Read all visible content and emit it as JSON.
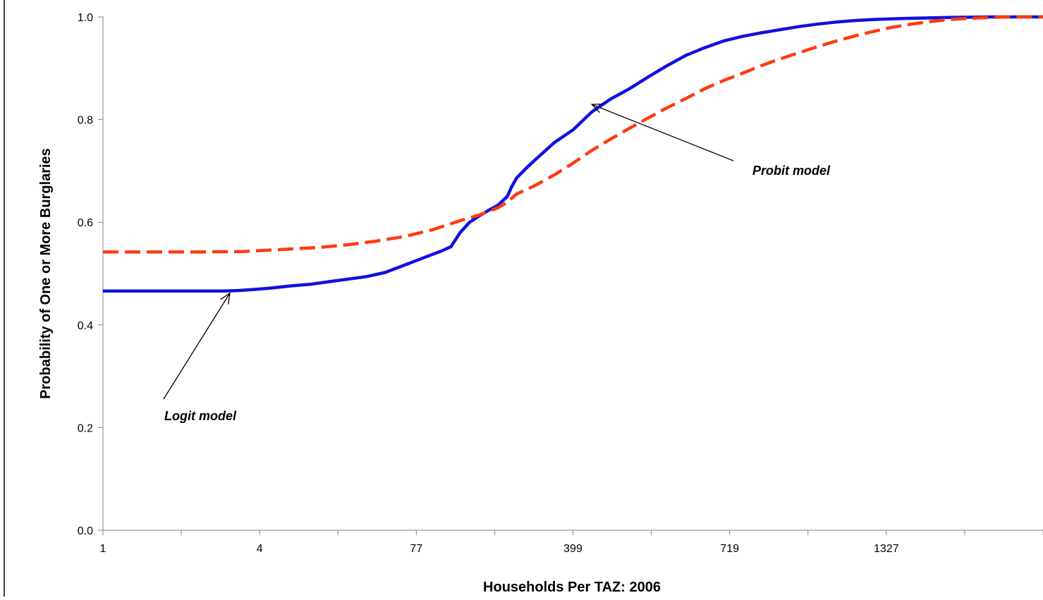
{
  "chart_data": {
    "type": "line",
    "title": "",
    "xlabel": "Households Per TAZ: 2006",
    "ylabel": "Probability of One or More Burglaries",
    "x_tick_labels": [
      "1",
      "4",
      "77",
      "399",
      "719",
      "1327"
    ],
    "y_ticks": [
      "0.0",
      "0.2",
      "0.4",
      "0.6",
      "0.8",
      "1.0"
    ],
    "ylim": [
      0,
      1
    ],
    "grid": false,
    "legend": "none",
    "series": [
      {
        "color": "#1010e0",
        "style": "solid",
        "points": [
          [
            0.0,
            0.466
          ],
          [
            0.05,
            0.466
          ],
          [
            0.1,
            0.466
          ],
          [
            0.13,
            0.466
          ],
          [
            0.145,
            0.467
          ],
          [
            0.16,
            0.469
          ],
          [
            0.18,
            0.472
          ],
          [
            0.2,
            0.476
          ],
          [
            0.22,
            0.479
          ],
          [
            0.24,
            0.484
          ],
          [
            0.26,
            0.489
          ],
          [
            0.28,
            0.494
          ],
          [
            0.3,
            0.502
          ],
          [
            0.32,
            0.516
          ],
          [
            0.34,
            0.53
          ],
          [
            0.36,
            0.544
          ],
          [
            0.37,
            0.552
          ],
          [
            0.38,
            0.58
          ],
          [
            0.39,
            0.6
          ],
          [
            0.4,
            0.612
          ],
          [
            0.41,
            0.623
          ],
          [
            0.42,
            0.633
          ],
          [
            0.43,
            0.65
          ],
          [
            0.435,
            0.67
          ],
          [
            0.44,
            0.686
          ],
          [
            0.45,
            0.705
          ],
          [
            0.46,
            0.722
          ],
          [
            0.48,
            0.755
          ],
          [
            0.5,
            0.78
          ],
          [
            0.52,
            0.815
          ],
          [
            0.54,
            0.84
          ],
          [
            0.56,
            0.86
          ],
          [
            0.58,
            0.883
          ],
          [
            0.6,
            0.905
          ],
          [
            0.62,
            0.925
          ],
          [
            0.64,
            0.94
          ],
          [
            0.66,
            0.953
          ],
          [
            0.68,
            0.962
          ],
          [
            0.7,
            0.969
          ],
          [
            0.72,
            0.975
          ],
          [
            0.74,
            0.981
          ],
          [
            0.76,
            0.986
          ],
          [
            0.78,
            0.99
          ],
          [
            0.8,
            0.993
          ],
          [
            0.82,
            0.995
          ],
          [
            0.85,
            0.997
          ],
          [
            0.9,
            0.999
          ],
          [
            0.95,
            1.0
          ],
          [
            1.0,
            1.0
          ]
        ]
      },
      {
        "color": "#ff3a10",
        "style": "dashed",
        "points": [
          [
            0.0,
            0.542
          ],
          [
            0.05,
            0.542
          ],
          [
            0.1,
            0.542
          ],
          [
            0.15,
            0.543
          ],
          [
            0.17,
            0.545
          ],
          [
            0.2,
            0.548
          ],
          [
            0.23,
            0.551
          ],
          [
            0.26,
            0.556
          ],
          [
            0.29,
            0.563
          ],
          [
            0.32,
            0.572
          ],
          [
            0.35,
            0.585
          ],
          [
            0.38,
            0.603
          ],
          [
            0.4,
            0.614
          ],
          [
            0.42,
            0.628
          ],
          [
            0.43,
            0.639
          ],
          [
            0.44,
            0.655
          ],
          [
            0.46,
            0.672
          ],
          [
            0.48,
            0.692
          ],
          [
            0.5,
            0.715
          ],
          [
            0.52,
            0.74
          ],
          [
            0.54,
            0.762
          ],
          [
            0.56,
            0.783
          ],
          [
            0.58,
            0.803
          ],
          [
            0.6,
            0.823
          ],
          [
            0.62,
            0.841
          ],
          [
            0.64,
            0.86
          ],
          [
            0.66,
            0.876
          ],
          [
            0.68,
            0.89
          ],
          [
            0.7,
            0.905
          ],
          [
            0.72,
            0.918
          ],
          [
            0.74,
            0.93
          ],
          [
            0.76,
            0.942
          ],
          [
            0.78,
            0.953
          ],
          [
            0.8,
            0.963
          ],
          [
            0.82,
            0.972
          ],
          [
            0.84,
            0.98
          ],
          [
            0.86,
            0.986
          ],
          [
            0.88,
            0.991
          ],
          [
            0.9,
            0.995
          ],
          [
            0.93,
            0.998
          ],
          [
            0.96,
            1.0
          ],
          [
            1.0,
            1.0
          ]
        ]
      }
    ],
    "annotations": [
      {
        "text": "Logit model",
        "series_index": 0,
        "target": [
          0.135,
          0.466
        ]
      },
      {
        "text": "Probit model",
        "series_index": 1,
        "target": [
          0.52,
          0.835
        ]
      }
    ]
  }
}
